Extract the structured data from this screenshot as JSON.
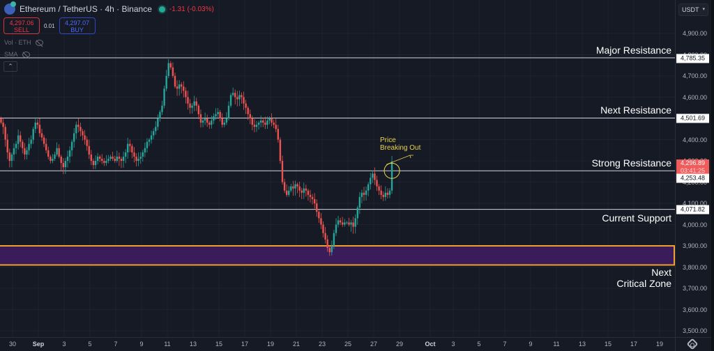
{
  "header": {
    "symbol_title": "Ethereum / TetherUS · 4h · Binance",
    "change": "-1.31 (-0.03%)",
    "sell_price": "4,297.06",
    "sell_label": "SELL",
    "spread": "0.01",
    "buy_price": "4,297.07",
    "buy_label": "BUY",
    "indicators": [
      {
        "label": "Vol · ETH"
      },
      {
        "label": "SMA"
      }
    ],
    "collapse_icon": "chevron-up-icon"
  },
  "price_axis": {
    "currency": "USDT",
    "ticks": [
      "4,900.00",
      "4,800.00",
      "4,700.00",
      "4,600.00",
      "4,500.00",
      "4,400.00",
      "4,300.00",
      "4,200.00",
      "4,100.00",
      "4,000.00",
      "3,900.00",
      "3,800.00",
      "3,700.00",
      "3,600.00",
      "3,500.00"
    ],
    "current_price": "4,296.89",
    "countdown": "03:41:25"
  },
  "time_axis": {
    "ticks": [
      "30",
      "Sep",
      "3",
      "5",
      "7",
      "9",
      "11",
      "13",
      "15",
      "17",
      "19",
      "21",
      "23",
      "25",
      "27",
      "29",
      "Oct",
      "3",
      "5",
      "7",
      "9",
      "11",
      "13",
      "15",
      "17",
      "19"
    ],
    "settings_icon": "gear-icon"
  },
  "annotations": {
    "major_resistance": "Major Resistance",
    "next_resistance": "Next Resistance",
    "strong_resistance": "Strong Resistance",
    "current_support": "Current Support",
    "next_critical_zone_line1": "Next",
    "next_critical_zone_line2": "Critical Zone",
    "breakout_line1": "Price",
    "breakout_line2": "Breaking Out"
  },
  "levels": {
    "major_resistance": "4,785.35",
    "next_resistance": "4,501.69",
    "strong_resistance": "4,253.48",
    "current_support": "4,071.82"
  },
  "colors": {
    "background": "#161a25",
    "up": "#26a69a",
    "down": "#ef5350",
    "zone_fill": "#3a1c5a",
    "zone_border": "#f0a030",
    "annotation_yellow": "#e8d44d",
    "level_line": "#d1d4dc"
  },
  "chart_data": {
    "type": "candlestick",
    "title": "Ethereum / TetherUS · 4h · Binance",
    "xlabel": "",
    "ylabel": "USDT",
    "ylim": [
      3500,
      4900
    ],
    "x_tick_labels": [
      "30",
      "Sep",
      "3",
      "5",
      "7",
      "9",
      "11",
      "13",
      "15",
      "17",
      "19",
      "21",
      "23",
      "25",
      "27",
      "29",
      "Oct",
      "3",
      "5",
      "7",
      "9",
      "11",
      "13",
      "15",
      "17",
      "19"
    ],
    "horizontal_levels": [
      {
        "name": "Major Resistance",
        "value": 4785.35
      },
      {
        "name": "Next Resistance",
        "value": 4501.69
      },
      {
        "name": "Strong Resistance",
        "value": 4253.48
      },
      {
        "name": "Current Support",
        "value": 4071.82
      }
    ],
    "zones": [
      {
        "name": "Next Critical Zone",
        "from": 3810,
        "to": 3900
      }
    ],
    "last_price": 4296.89,
    "annotations": [
      "Price Breaking Out"
    ],
    "closes_approx": [
      4480,
      4460,
      4400,
      4340,
      4300,
      4330,
      4360,
      4380,
      4420,
      4390,
      4360,
      4330,
      4350,
      4380,
      4400,
      4450,
      4480,
      4470,
      4430,
      4410,
      4380,
      4350,
      4320,
      4300,
      4310,
      4330,
      4360,
      4320,
      4290,
      4270,
      4300,
      4320,
      4350,
      4390,
      4430,
      4470,
      4460,
      4440,
      4420,
      4400,
      4370,
      4330,
      4300,
      4280,
      4300,
      4320,
      4310,
      4300,
      4290,
      4300,
      4310,
      4320,
      4310,
      4300,
      4320,
      4310,
      4300,
      4320,
      4340,
      4380,
      4370,
      4340,
      4320,
      4300,
      4310,
      4320,
      4340,
      4360,
      4390,
      4400,
      4420,
      4440,
      4460,
      4500,
      4530,
      4560,
      4640,
      4700,
      4760,
      4740,
      4700,
      4650,
      4640,
      4660,
      4650,
      4630,
      4600,
      4570,
      4550,
      4560,
      4580,
      4560,
      4520,
      4480,
      4490,
      4500,
      4480,
      4470,
      4490,
      4510,
      4520,
      4530,
      4500,
      4470,
      4480,
      4500,
      4560,
      4610,
      4620,
      4600,
      4590,
      4610,
      4600,
      4570,
      4550,
      4520,
      4500,
      4470,
      4460,
      4470,
      4480,
      4490,
      4480,
      4470,
      4490,
      4500,
      4480,
      4470,
      4450,
      4400,
      4300,
      4200,
      4160,
      4140,
      4160,
      4180,
      4170,
      4190,
      4180,
      4160,
      4150,
      4170,
      4160,
      4140,
      4130,
      4120,
      4100,
      4060,
      4030,
      4000,
      3960,
      3930,
      3890,
      3870,
      3900,
      3960,
      4000,
      4020,
      4010,
      4000,
      4010,
      4010,
      4000,
      4010,
      3990,
      4030,
      4080,
      4130,
      4150,
      4140,
      4160,
      4190,
      4220,
      4240,
      4210,
      4180,
      4160,
      4140,
      4130,
      4150,
      4140,
      4160,
      4296.89
    ]
  }
}
